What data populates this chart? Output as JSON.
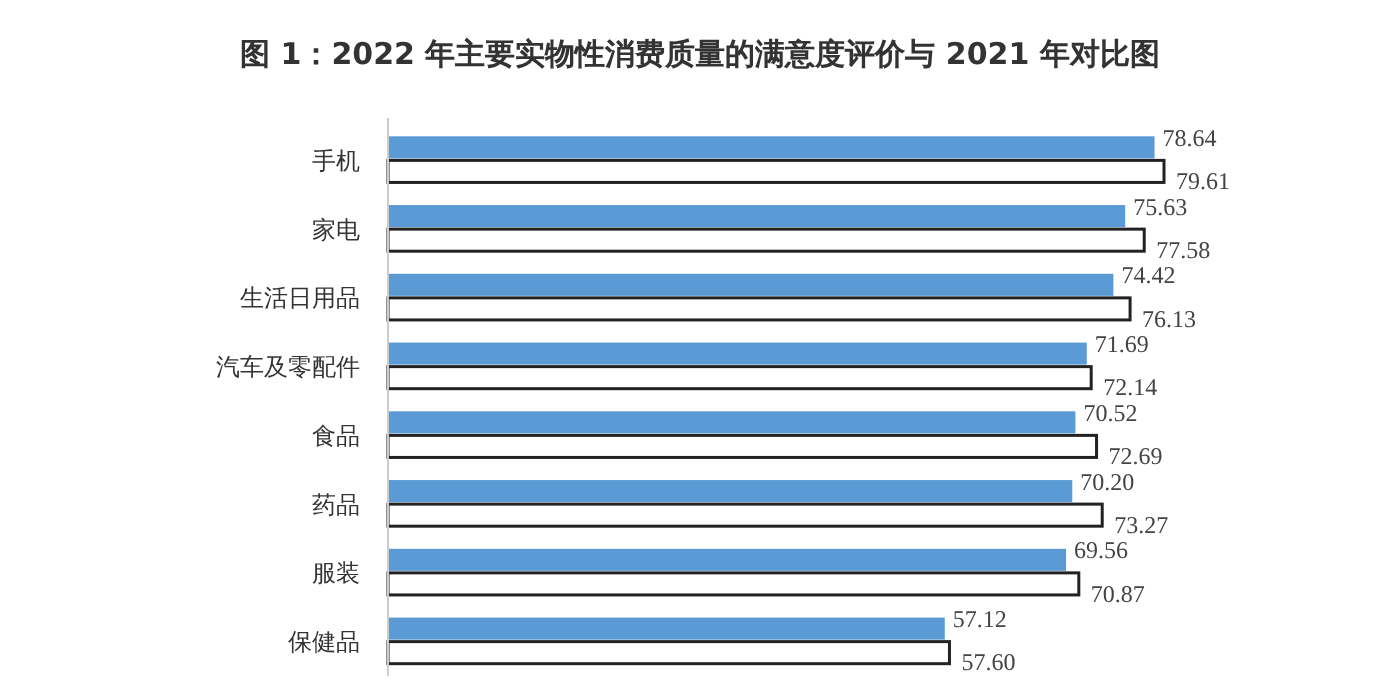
{
  "chart_data": {
    "type": "bar",
    "orientation": "horizontal",
    "title": "图 1：2022 年主要实物性消费质量的满意度评价与 2021 年对比图",
    "categories": [
      "手机",
      "家电",
      "生活日用品",
      "汽车及零配件",
      "食品",
      "药品",
      "服装",
      "保健品"
    ],
    "series": [
      {
        "color": "#5b9bd5",
        "values": [
          78.64,
          75.63,
          74.42,
          71.69,
          70.52,
          70.2,
          69.56,
          57.12
        ],
        "value_labels": [
          "78.64",
          "75.63",
          "74.42",
          "71.69",
          "70.52",
          "70.20",
          "69.56",
          "57.12"
        ]
      },
      {
        "color": "#ffffff",
        "values": [
          79.61,
          77.58,
          76.13,
          72.14,
          72.69,
          73.27,
          70.87,
          57.6
        ],
        "value_labels": [
          "79.61",
          "77.58",
          "76.13",
          "72.14",
          "72.69",
          "73.27",
          "70.87",
          "57.60"
        ]
      }
    ]
  }
}
